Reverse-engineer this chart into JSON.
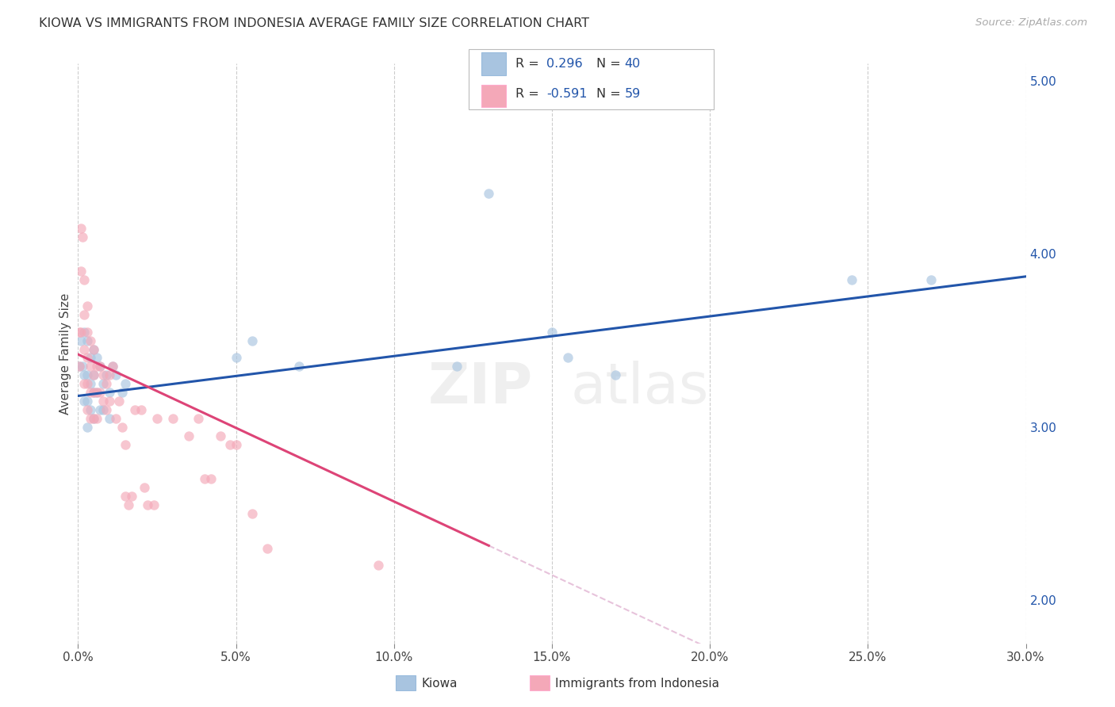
{
  "title": "KIOWA VS IMMIGRANTS FROM INDONESIA AVERAGE FAMILY SIZE CORRELATION CHART",
  "source": "Source: ZipAtlas.com",
  "ylabel": "Average Family Size",
  "xlim": [
    0.0,
    0.3
  ],
  "ylim": [
    1.75,
    5.1
  ],
  "yticks_right": [
    2.0,
    3.0,
    4.0,
    5.0
  ],
  "xticks": [
    0.0,
    0.05,
    0.1,
    0.15,
    0.2,
    0.25,
    0.3
  ],
  "xtick_labels": [
    "0.0%",
    "5.0%",
    "10.0%",
    "15.0%",
    "20.0%",
    "25.0%",
    "30.0%"
  ],
  "blue_color": "#A8C4E0",
  "pink_color": "#F4A8B8",
  "blue_fill": "#A8C4E0",
  "pink_fill": "#F4A8B8",
  "blue_line_color": "#2255AA",
  "pink_line_color": "#DD4477",
  "text_color": "#2255AA",
  "kiowa_x": [
    0.0005,
    0.001,
    0.0015,
    0.002,
    0.002,
    0.002,
    0.003,
    0.003,
    0.003,
    0.003,
    0.004,
    0.004,
    0.004,
    0.005,
    0.005,
    0.005,
    0.005,
    0.006,
    0.006,
    0.007,
    0.007,
    0.008,
    0.008,
    0.009,
    0.01,
    0.01,
    0.011,
    0.012,
    0.014,
    0.015,
    0.05,
    0.055,
    0.07,
    0.12,
    0.13,
    0.15,
    0.155,
    0.17,
    0.245,
    0.27
  ],
  "kiowa_y": [
    3.35,
    3.5,
    3.35,
    3.55,
    3.3,
    3.15,
    3.5,
    3.3,
    3.15,
    3.0,
    3.4,
    3.25,
    3.1,
    3.45,
    3.3,
    3.2,
    3.05,
    3.4,
    3.2,
    3.35,
    3.1,
    3.25,
    3.1,
    3.3,
    3.2,
    3.05,
    3.35,
    3.3,
    3.2,
    3.25,
    3.4,
    3.5,
    3.35,
    3.35,
    4.35,
    3.55,
    3.4,
    3.3,
    3.85,
    3.85
  ],
  "indonesia_x": [
    0.0003,
    0.0005,
    0.001,
    0.001,
    0.001,
    0.0015,
    0.002,
    0.002,
    0.002,
    0.002,
    0.003,
    0.003,
    0.003,
    0.003,
    0.003,
    0.004,
    0.004,
    0.004,
    0.004,
    0.005,
    0.005,
    0.005,
    0.005,
    0.006,
    0.006,
    0.006,
    0.007,
    0.007,
    0.008,
    0.008,
    0.009,
    0.009,
    0.01,
    0.01,
    0.011,
    0.012,
    0.013,
    0.014,
    0.015,
    0.015,
    0.016,
    0.017,
    0.018,
    0.02,
    0.021,
    0.022,
    0.024,
    0.025,
    0.03,
    0.035,
    0.038,
    0.04,
    0.042,
    0.045,
    0.048,
    0.05,
    0.055,
    0.06,
    0.095
  ],
  "indonesia_y": [
    3.35,
    3.55,
    4.15,
    3.9,
    3.55,
    4.1,
    3.85,
    3.65,
    3.45,
    3.25,
    3.7,
    3.55,
    3.4,
    3.25,
    3.1,
    3.5,
    3.35,
    3.2,
    3.05,
    3.45,
    3.3,
    3.2,
    3.05,
    3.35,
    3.2,
    3.05,
    3.35,
    3.2,
    3.3,
    3.15,
    3.25,
    3.1,
    3.3,
    3.15,
    3.35,
    3.05,
    3.15,
    3.0,
    2.9,
    2.6,
    2.55,
    2.6,
    3.1,
    3.1,
    2.65,
    2.55,
    2.55,
    3.05,
    3.05,
    2.95,
    3.05,
    2.7,
    2.7,
    2.95,
    2.9,
    2.9,
    2.5,
    2.3,
    2.2
  ],
  "blue_intercept": 3.18,
  "blue_slope": 2.3,
  "pink_intercept": 3.42,
  "pink_slope": -8.5
}
